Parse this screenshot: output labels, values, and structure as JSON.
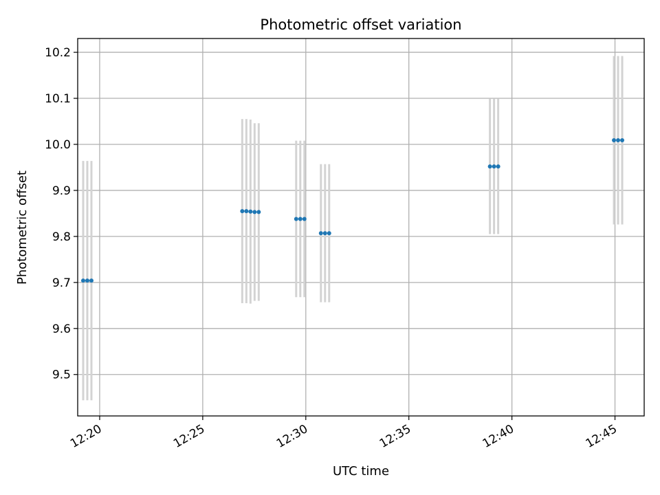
{
  "chart_data": {
    "type": "scatter",
    "title": "Photometric offset variation",
    "xlabel": "UTC time",
    "ylabel": "Photometric offset",
    "xlim": [
      "12:18:56",
      "12:46:25"
    ],
    "ylim": [
      9.41,
      10.23
    ],
    "x_ticks": [
      "12:20",
      "12:25",
      "12:30",
      "12:35",
      "12:40",
      "12:45"
    ],
    "y_ticks": [
      "9.5",
      "9.6",
      "9.7",
      "9.8",
      "9.9",
      "10.0",
      "10.1",
      "10.2"
    ],
    "grid": true,
    "colors": {
      "marker": "#1f77b4",
      "errorbar": "#d3d3d3",
      "grid": "#b0b0b0"
    },
    "points": [
      {
        "time": "12:19:12",
        "offset": 9.704,
        "err": 0.26
      },
      {
        "time": "12:19:24",
        "offset": 9.704,
        "err": 0.26
      },
      {
        "time": "12:19:36",
        "offset": 9.704,
        "err": 0.26
      },
      {
        "time": "12:26:55",
        "offset": 9.855,
        "err": 0.2
      },
      {
        "time": "12:27:07",
        "offset": 9.855,
        "err": 0.2
      },
      {
        "time": "12:27:19",
        "offset": 9.854,
        "err": 0.2
      },
      {
        "time": "12:27:31",
        "offset": 9.853,
        "err": 0.193
      },
      {
        "time": "12:27:43",
        "offset": 9.853,
        "err": 0.193
      },
      {
        "time": "12:29:32",
        "offset": 9.838,
        "err": 0.17
      },
      {
        "time": "12:29:44",
        "offset": 9.838,
        "err": 0.17
      },
      {
        "time": "12:29:56",
        "offset": 9.838,
        "err": 0.17
      },
      {
        "time": "12:30:44",
        "offset": 9.807,
        "err": 0.15
      },
      {
        "time": "12:30:56",
        "offset": 9.807,
        "err": 0.15
      },
      {
        "time": "12:31:08",
        "offset": 9.807,
        "err": 0.15
      },
      {
        "time": "12:38:56",
        "offset": 9.952,
        "err": 0.147
      },
      {
        "time": "12:39:08",
        "offset": 9.952,
        "err": 0.147
      },
      {
        "time": "12:39:20",
        "offset": 9.952,
        "err": 0.147
      },
      {
        "time": "12:44:57",
        "offset": 10.009,
        "err": 0.183
      },
      {
        "time": "12:45:09",
        "offset": 10.009,
        "err": 0.183
      },
      {
        "time": "12:45:21",
        "offset": 10.009,
        "err": 0.183
      }
    ]
  }
}
